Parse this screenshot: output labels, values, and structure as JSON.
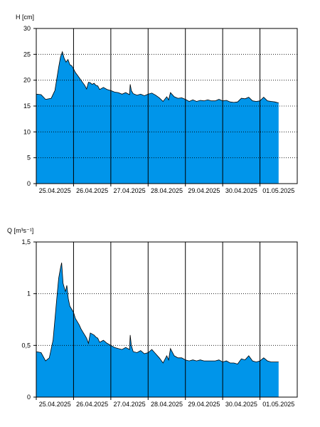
{
  "chart_data": [
    {
      "type": "area",
      "ylabel": "H [cm]",
      "ylim": [
        0,
        30
      ],
      "yticks": [
        "0",
        "5",
        "10",
        "15",
        "20",
        "25",
        "30"
      ],
      "xticks": [
        "25.04.2025",
        "26.04.2025",
        "27.04.2025",
        "28.04.2025",
        "29.04.2025",
        "30.04.2025",
        "01.05.2025"
      ],
      "xlim": [
        0,
        7.0
      ],
      "grid": true,
      "fill_color": "#0095ea",
      "line_color": "#000000",
      "series": [
        {
          "x": [
            0.0,
            0.13,
            0.25,
            0.4,
            0.5,
            0.6,
            0.65,
            0.7,
            0.75,
            0.8,
            0.85,
            0.9,
            0.95,
            1.0,
            1.05,
            1.1,
            1.15,
            1.2,
            1.25,
            1.3,
            1.35,
            1.4,
            1.45,
            1.5,
            1.55,
            1.6,
            1.65,
            1.7,
            1.8,
            1.9,
            2.0,
            2.1,
            2.2,
            2.3,
            2.4,
            2.5,
            2.52,
            2.55,
            2.6,
            2.7,
            2.8,
            2.9,
            3.0,
            3.1,
            3.2,
            3.3,
            3.4,
            3.5,
            3.55,
            3.6,
            3.7,
            3.8,
            3.9,
            4.0,
            4.1,
            4.2,
            4.3,
            4.4,
            4.5,
            4.6,
            4.7,
            4.8,
            4.9,
            5.0,
            5.1,
            5.2,
            5.3,
            5.4,
            5.5,
            5.6,
            5.7,
            5.8,
            5.9,
            6.0,
            6.1,
            6.2,
            6.3,
            6.4,
            6.5
          ],
          "y": [
            17.3,
            17.2,
            16.3,
            16.5,
            18.0,
            22.5,
            24.5,
            25.5,
            24.2,
            23.5,
            24.0,
            23.0,
            22.8,
            22.2,
            21.5,
            21.0,
            20.5,
            20.0,
            19.5,
            19.0,
            18.3,
            19.6,
            19.5,
            19.2,
            19.4,
            19.0,
            18.9,
            18.2,
            18.6,
            18.2,
            18.0,
            17.7,
            17.6,
            17.3,
            17.6,
            17.2,
            19.2,
            18.0,
            17.4,
            17.1,
            17.3,
            17.0,
            17.3,
            17.5,
            17.1,
            16.6,
            15.9,
            16.8,
            16.2,
            17.6,
            16.8,
            16.5,
            16.6,
            16.3,
            15.9,
            16.2,
            15.9,
            16.1,
            16.0,
            16.2,
            16.0,
            16.0,
            16.3,
            16.0,
            16.1,
            15.8,
            15.7,
            15.8,
            16.5,
            16.4,
            16.7,
            16.0,
            15.9,
            16.0,
            16.7,
            16.0,
            15.9,
            15.8,
            15.6
          ]
        }
      ]
    },
    {
      "type": "area",
      "ylabel": "Q [m³s⁻¹]",
      "ylim": [
        0,
        1.5
      ],
      "yticks": [
        "0",
        "0,5",
        "1",
        "1,5"
      ],
      "xticks": [
        "25.04.2025",
        "26.04.2025",
        "27.04.2025",
        "28.04.2025",
        "29.04.2025",
        "30.04.2025",
        "01.05.2025"
      ],
      "xlim": [
        0,
        7.0
      ],
      "grid": true,
      "fill_color": "#0095ea",
      "line_color": "#000000",
      "series": [
        {
          "x": [
            0.0,
            0.13,
            0.25,
            0.35,
            0.45,
            0.5,
            0.55,
            0.6,
            0.65,
            0.68,
            0.72,
            0.78,
            0.82,
            0.86,
            0.9,
            0.95,
            1.0,
            1.05,
            1.1,
            1.15,
            1.2,
            1.25,
            1.3,
            1.35,
            1.4,
            1.45,
            1.5,
            1.55,
            1.6,
            1.65,
            1.7,
            1.8,
            1.9,
            2.0,
            2.1,
            2.2,
            2.3,
            2.4,
            2.5,
            2.52,
            2.55,
            2.6,
            2.7,
            2.8,
            2.9,
            3.0,
            3.1,
            3.2,
            3.3,
            3.4,
            3.5,
            3.55,
            3.6,
            3.7,
            3.8,
            3.9,
            4.0,
            4.1,
            4.2,
            4.3,
            4.4,
            4.5,
            4.6,
            4.7,
            4.8,
            4.9,
            5.0,
            5.1,
            5.2,
            5.3,
            5.4,
            5.5,
            5.6,
            5.7,
            5.8,
            5.9,
            6.0,
            6.1,
            6.2,
            6.3,
            6.4,
            6.5
          ],
          "y": [
            0.44,
            0.43,
            0.35,
            0.38,
            0.55,
            0.75,
            0.95,
            1.15,
            1.25,
            1.3,
            1.1,
            1.02,
            1.08,
            0.95,
            0.88,
            0.85,
            0.82,
            0.76,
            0.73,
            0.7,
            0.66,
            0.63,
            0.6,
            0.57,
            0.52,
            0.62,
            0.61,
            0.6,
            0.58,
            0.57,
            0.53,
            0.55,
            0.52,
            0.5,
            0.48,
            0.47,
            0.46,
            0.48,
            0.46,
            0.6,
            0.5,
            0.44,
            0.43,
            0.45,
            0.42,
            0.43,
            0.46,
            0.42,
            0.38,
            0.33,
            0.4,
            0.36,
            0.47,
            0.4,
            0.38,
            0.38,
            0.36,
            0.35,
            0.36,
            0.35,
            0.36,
            0.35,
            0.35,
            0.35,
            0.35,
            0.36,
            0.34,
            0.35,
            0.33,
            0.33,
            0.32,
            0.37,
            0.36,
            0.4,
            0.35,
            0.34,
            0.35,
            0.38,
            0.35,
            0.34,
            0.34,
            0.34
          ]
        }
      ]
    }
  ]
}
